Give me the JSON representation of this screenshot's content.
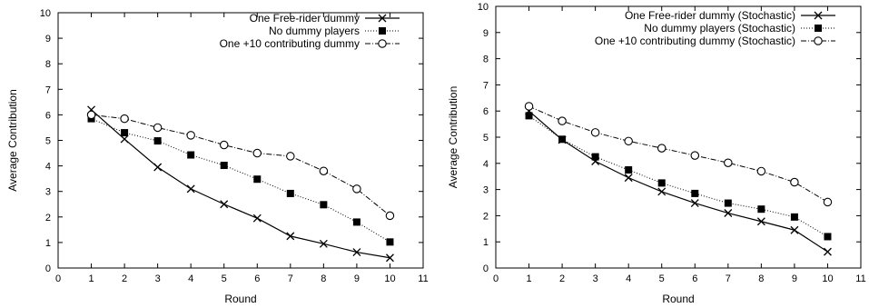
{
  "chart_data": [
    {
      "type": "line",
      "xlabel": "Round",
      "ylabel": "Average Contribution",
      "xlim": [
        0,
        11
      ],
      "ylim": [
        0,
        10
      ],
      "xticks": [
        "0",
        "1",
        "2",
        "3",
        "4",
        "5",
        "6",
        "7",
        "8",
        "9",
        "10",
        "11"
      ],
      "yticks": [
        "0",
        "1",
        "2",
        "3",
        "4",
        "5",
        "6",
        "7",
        "8",
        "9",
        "10"
      ],
      "grid": false,
      "legend_position": "top-right",
      "x": [
        1,
        2,
        3,
        4,
        5,
        6,
        7,
        8,
        9,
        10
      ],
      "series": [
        {
          "name": "One Free-rider dummy",
          "marker": "cross",
          "line": "solid",
          "color": "#000000",
          "values": [
            6.2,
            5.05,
            3.95,
            3.1,
            2.5,
            1.95,
            1.25,
            0.95,
            0.62,
            0.4
          ]
        },
        {
          "name": "No dummy players",
          "marker": "filled-square",
          "line": "dotted",
          "color": "#000000",
          "values": [
            5.85,
            5.3,
            4.98,
            4.43,
            4.02,
            3.48,
            2.92,
            2.48,
            1.8,
            1.02
          ]
        },
        {
          "name": "One +10 contributing dummy",
          "marker": "open-circle",
          "line": "dash-dot",
          "color": "#000000",
          "values": [
            6.0,
            5.85,
            5.5,
            5.2,
            4.82,
            4.5,
            4.38,
            3.8,
            3.1,
            2.05
          ]
        }
      ]
    },
    {
      "type": "line",
      "xlabel": "Round",
      "ylabel": "Average Contribution",
      "xlim": [
        0,
        11
      ],
      "ylim": [
        0,
        10
      ],
      "xticks": [
        "0",
        "1",
        "2",
        "3",
        "4",
        "5",
        "6",
        "7",
        "8",
        "9",
        "10",
        "11"
      ],
      "yticks": [
        "0",
        "1",
        "2",
        "3",
        "4",
        "5",
        "6",
        "7",
        "8",
        "9",
        "10"
      ],
      "grid": false,
      "legend_position": "top-right",
      "x": [
        1,
        2,
        3,
        4,
        5,
        6,
        7,
        8,
        9,
        10
      ],
      "series": [
        {
          "name": "One Free-rider dummy (Stochastic)",
          "marker": "cross",
          "line": "solid",
          "color": "#000000",
          "values": [
            6.0,
            4.9,
            4.08,
            3.45,
            2.92,
            2.48,
            2.1,
            1.78,
            1.45,
            0.62
          ]
        },
        {
          "name": "No dummy players (Stochastic)",
          "marker": "filled-square",
          "line": "dotted",
          "color": "#000000",
          "values": [
            5.82,
            4.92,
            4.25,
            3.75,
            3.25,
            2.85,
            2.48,
            2.25,
            1.95,
            1.2
          ]
        },
        {
          "name": "One +10 contributing dummy (Stochastic)",
          "marker": "open-circle",
          "line": "dash-dot",
          "color": "#000000",
          "values": [
            6.18,
            5.62,
            5.18,
            4.85,
            4.58,
            4.3,
            4.02,
            3.7,
            3.28,
            2.52
          ]
        }
      ]
    }
  ]
}
